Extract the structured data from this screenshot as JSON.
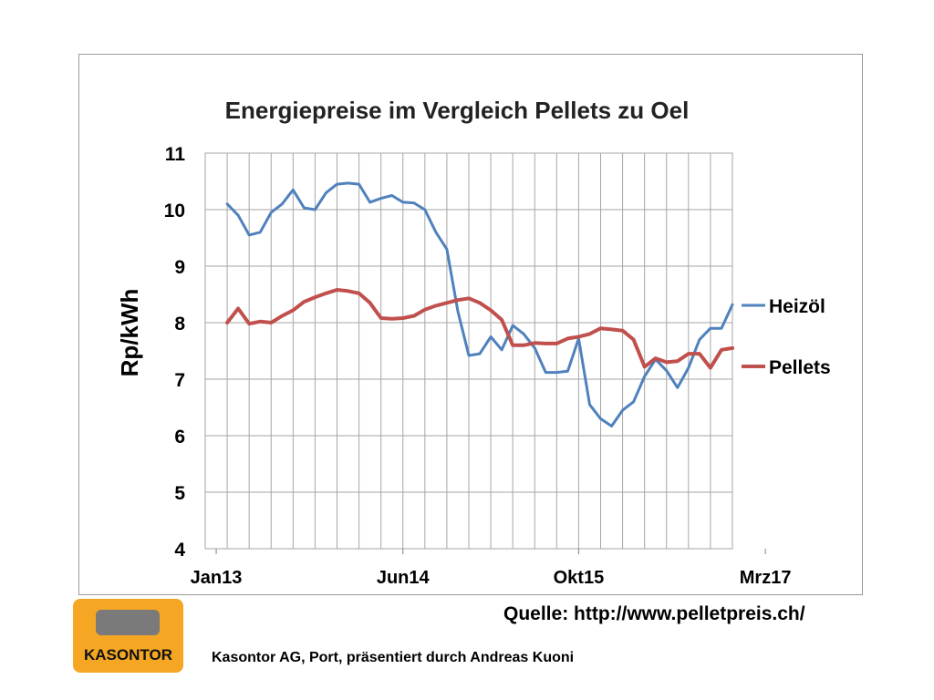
{
  "chart_data": {
    "type": "line",
    "title": "Energiepreise im Vergleich Pellets zu  Oel",
    "ylabel": "Rp/kWh",
    "xlabel": "",
    "ylim": [
      4,
      11
    ],
    "yticks": [
      4,
      5,
      6,
      7,
      8,
      9,
      10,
      11
    ],
    "xlim": [
      -1,
      47
    ],
    "xticks": [
      {
        "label": "Jan13",
        "value": 0
      },
      {
        "label": "Jun14",
        "value": 17
      },
      {
        "label": "Okt15",
        "value": 33
      },
      {
        "label": "Mrz17",
        "value": 50
      }
    ],
    "grid": true,
    "legend_position": "right",
    "series": [
      {
        "name": "Heizöl",
        "color": "#4f81bd",
        "points": [
          [
            1,
            10.1
          ],
          [
            2,
            9.9
          ],
          [
            3,
            9.55
          ],
          [
            4,
            9.6
          ],
          [
            5,
            9.95
          ],
          [
            6,
            10.1
          ],
          [
            7,
            10.35
          ],
          [
            8,
            10.03
          ],
          [
            9,
            10.0
          ],
          [
            10,
            10.3
          ],
          [
            11,
            10.45
          ],
          [
            12,
            10.47
          ],
          [
            13,
            10.45
          ],
          [
            14,
            10.13
          ],
          [
            15,
            10.2
          ],
          [
            16,
            10.25
          ],
          [
            17,
            10.13
          ],
          [
            18,
            10.12
          ],
          [
            19,
            10.0
          ],
          [
            20,
            9.6
          ],
          [
            21,
            9.3
          ],
          [
            22,
            8.2
          ],
          [
            23,
            7.42
          ],
          [
            24,
            7.45
          ],
          [
            25,
            7.75
          ],
          [
            26,
            7.52
          ],
          [
            27,
            7.95
          ],
          [
            28,
            7.8
          ],
          [
            29,
            7.55
          ],
          [
            30,
            7.12
          ],
          [
            31,
            7.12
          ],
          [
            32,
            7.14
          ],
          [
            33,
            7.72
          ],
          [
            34,
            6.55
          ],
          [
            35,
            6.3
          ],
          [
            36,
            6.17
          ],
          [
            37,
            6.45
          ],
          [
            38,
            6.6
          ],
          [
            39,
            7.05
          ],
          [
            40,
            7.35
          ],
          [
            41,
            7.15
          ],
          [
            42,
            6.85
          ],
          [
            43,
            7.2
          ],
          [
            44,
            7.7
          ],
          [
            45,
            7.9
          ],
          [
            46,
            7.9
          ],
          [
            47,
            8.32
          ]
        ]
      },
      {
        "name": "Pellets",
        "color": "#c0504d",
        "points": [
          [
            1,
            8.0
          ],
          [
            2,
            8.25
          ],
          [
            3,
            7.98
          ],
          [
            4,
            8.02
          ],
          [
            5,
            8.0
          ],
          [
            6,
            8.12
          ],
          [
            7,
            8.22
          ],
          [
            8,
            8.37
          ],
          [
            9,
            8.45
          ],
          [
            10,
            8.52
          ],
          [
            11,
            8.58
          ],
          [
            12,
            8.56
          ],
          [
            13,
            8.52
          ],
          [
            14,
            8.35
          ],
          [
            15,
            8.08
          ],
          [
            16,
            8.07
          ],
          [
            17,
            8.08
          ],
          [
            18,
            8.12
          ],
          [
            19,
            8.23
          ],
          [
            20,
            8.3
          ],
          [
            21,
            8.35
          ],
          [
            22,
            8.4
          ],
          [
            23,
            8.43
          ],
          [
            24,
            8.35
          ],
          [
            25,
            8.22
          ],
          [
            26,
            8.05
          ],
          [
            27,
            7.6
          ],
          [
            28,
            7.6
          ],
          [
            29,
            7.64
          ],
          [
            30,
            7.63
          ],
          [
            31,
            7.63
          ],
          [
            32,
            7.72
          ],
          [
            33,
            7.75
          ],
          [
            34,
            7.8
          ],
          [
            35,
            7.9
          ],
          [
            36,
            7.88
          ],
          [
            37,
            7.86
          ],
          [
            38,
            7.7
          ],
          [
            39,
            7.22
          ],
          [
            40,
            7.37
          ],
          [
            41,
            7.3
          ],
          [
            42,
            7.32
          ],
          [
            43,
            7.45
          ],
          [
            44,
            7.45
          ],
          [
            45,
            7.2
          ],
          [
            46,
            7.52
          ],
          [
            47,
            7.55
          ]
        ]
      }
    ]
  },
  "footer": {
    "source": "Quelle: http://www.pelletpreis.ch/",
    "logo_text": "KASONTOR",
    "credit": "Kasontor AG, Port, präsentiert durch Andreas Kuoni"
  }
}
